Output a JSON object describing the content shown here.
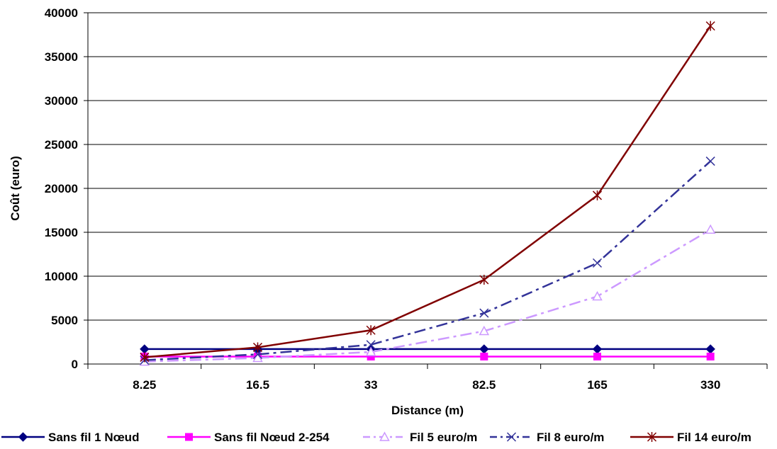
{
  "chart_data": {
    "type": "line",
    "title": "",
    "xlabel": "Distance (m)",
    "ylabel": "Coût (euro)",
    "categories": [
      "8.25",
      "16.5",
      "33",
      "82.5",
      "165",
      "330"
    ],
    "ylim": [
      0,
      40000
    ],
    "yticks": [
      "0",
      "5000",
      "10000",
      "15000",
      "20000",
      "25000",
      "30000",
      "35000",
      "40000"
    ],
    "grid": true,
    "legend_position": "bottom",
    "series": [
      {
        "name": "Sans fil 1 Nœud",
        "values": [
          1700,
          1700,
          1700,
          1700,
          1700,
          1700
        ],
        "color": "#000080",
        "marker": "diamond",
        "dash": "solid"
      },
      {
        "name": "Sans fil Nœud 2-254",
        "values": [
          850,
          850,
          850,
          850,
          850,
          850
        ],
        "color": "#ff00ff",
        "marker": "square",
        "dash": "solid"
      },
      {
        "name": "Fil 5 euro/m",
        "values": [
          275,
          690,
          1375,
          3750,
          7700,
          15300
        ],
        "color": "#cc99ff",
        "marker": "triangle",
        "dash": "dashdot"
      },
      {
        "name": "Fil 8 euro/m",
        "values": [
          440,
          1100,
          2200,
          5800,
          11500,
          23100
        ],
        "color": "#333399",
        "marker": "x",
        "dash": "dashdot"
      },
      {
        "name": "Fil 14 euro/m",
        "values": [
          770,
          1900,
          3850,
          9600,
          19200,
          38500
        ],
        "color": "#800000",
        "marker": "star",
        "dash": "solid"
      }
    ]
  }
}
